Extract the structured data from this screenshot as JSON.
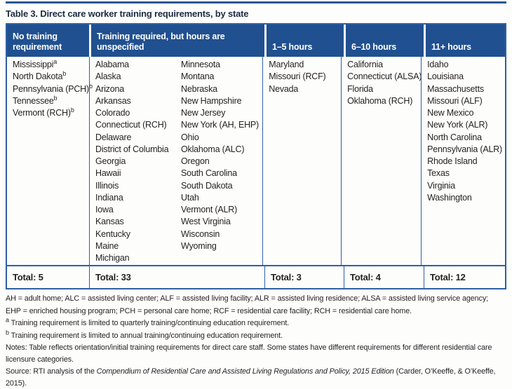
{
  "title": "Table 3. Direct care worker training requirements, by state",
  "colors": {
    "header_bg": "#20508f",
    "border_blue": "#2e5fa3",
    "top_rule": "#2b5693",
    "title_text": "#1c2b45",
    "body_text": "#231f20"
  },
  "table": {
    "columns": [
      {
        "header": "No training requirement",
        "total": "Total: 5",
        "lists": [
          [
            {
              "label": "Mississippi",
              "sup": "a"
            },
            {
              "label": "North Dakota",
              "sup": "b"
            },
            {
              "label": "Pennsylvania (PCH)",
              "sup": "b"
            },
            {
              "label": "Tennessee",
              "sup": "b"
            },
            {
              "label": "Vermont (RCH)",
              "sup": "b"
            }
          ]
        ]
      },
      {
        "header": "Training required, but hours are unspecified",
        "total": "Total: 33",
        "lists": [
          [
            {
              "label": "Alabama"
            },
            {
              "label": "Alaska"
            },
            {
              "label": "Arizona"
            },
            {
              "label": "Arkansas"
            },
            {
              "label": "Colorado"
            },
            {
              "label": "Connecticut (RCH)"
            },
            {
              "label": "Delaware"
            },
            {
              "label": "District of Columbia"
            },
            {
              "label": "Georgia"
            },
            {
              "label": "Hawaii"
            },
            {
              "label": "Illinois"
            },
            {
              "label": "Indiana"
            },
            {
              "label": "Iowa"
            },
            {
              "label": "Kansas"
            },
            {
              "label": "Kentucky"
            },
            {
              "label": "Maine"
            },
            {
              "label": "Michigan"
            }
          ],
          [
            {
              "label": "Minnesota"
            },
            {
              "label": "Montana"
            },
            {
              "label": "Nebraska"
            },
            {
              "label": "New Hampshire"
            },
            {
              "label": "New Jersey"
            },
            {
              "label": "New York (AH, EHP)"
            },
            {
              "label": "Ohio"
            },
            {
              "label": "Oklahoma (ALC)"
            },
            {
              "label": "Oregon"
            },
            {
              "label": "South Carolina"
            },
            {
              "label": "South Dakota"
            },
            {
              "label": "Utah"
            },
            {
              "label": "Vermont (ALR)"
            },
            {
              "label": "West Virginia"
            },
            {
              "label": "Wisconsin"
            },
            {
              "label": "Wyoming"
            }
          ]
        ]
      },
      {
        "header": "1–5 hours",
        "total": "Total: 3",
        "lists": [
          [
            {
              "label": "Maryland"
            },
            {
              "label": "Missouri (RCF)"
            },
            {
              "label": "Nevada"
            }
          ]
        ]
      },
      {
        "header": "6–10 hours",
        "total": "Total: 4",
        "lists": [
          [
            {
              "label": "California"
            },
            {
              "label": "Connecticut (ALSA)"
            },
            {
              "label": "Florida"
            },
            {
              "label": "Oklahoma (RCH)"
            }
          ]
        ]
      },
      {
        "header": "11+ hours",
        "total": "Total: 12",
        "lists": [
          [
            {
              "label": "Idaho"
            },
            {
              "label": "Louisiana"
            },
            {
              "label": "Massachusetts"
            },
            {
              "label": "Missouri (ALF)"
            },
            {
              "label": "New Mexico"
            },
            {
              "label": "New York (ALR)"
            },
            {
              "label": "North Carolina"
            },
            {
              "label": "Pennsylvania (ALR)"
            },
            {
              "label": "Rhode Island"
            },
            {
              "label": "Texas"
            },
            {
              "label": "Virginia"
            },
            {
              "label": "Washington"
            }
          ]
        ]
      }
    ]
  },
  "footer": {
    "abbrev_lines": [
      "AH = adult home; ALC = assisted living center; ALF = assisted living facility; ALR = assisted living residence; ALSA = assisted living service agency;",
      "EHP = enriched housing program; PCH = personal care home; RCF = residential care facility; RCH = residential care home."
    ],
    "footnotes": [
      {
        "marker": "a",
        "text": " Training requirement is limited to quarterly training/continuing education requirement."
      },
      {
        "marker": "b",
        "text": " Training requirement is limited to annual training/continuing education requirement."
      }
    ],
    "notes": "Notes: Table reflects orientation/initial training requirements for direct care staff. Some states have different requirements for different residential care licensure categories.",
    "source": {
      "prefix": "Source: RTI analysis of the ",
      "italic": "Compendium of Residential Care and Assisted Living Regulations and Policy, 2015 Edition",
      "suffix": " (Carder, O’Keeffe, & O’Keeffe, 2015)."
    }
  }
}
